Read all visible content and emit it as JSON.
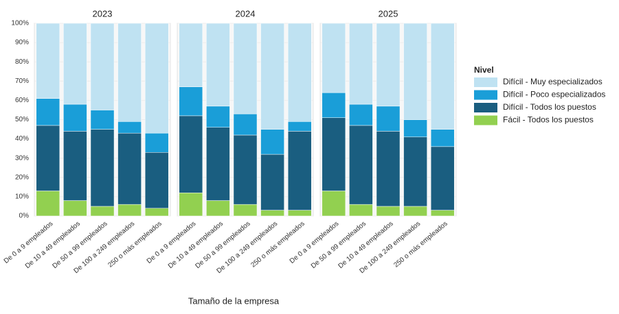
{
  "chart_data": {
    "type": "bar",
    "stacked": true,
    "xlabel": "Tamaño de la empresa",
    "legend_title": "Nivel",
    "ylim": [
      0,
      100
    ],
    "yticks": [
      {
        "value": 0,
        "label": "0%"
      },
      {
        "value": 10,
        "label": "10%"
      },
      {
        "value": 20,
        "label": "20%"
      },
      {
        "value": 30,
        "label": "30%"
      },
      {
        "value": 40,
        "label": "40%"
      },
      {
        "value": 50,
        "label": "50%"
      },
      {
        "value": 60,
        "label": "60%"
      },
      {
        "value": 70,
        "label": "70%"
      },
      {
        "value": 80,
        "label": "80%"
      },
      {
        "value": 90,
        "label": "90%"
      },
      {
        "value": 100,
        "label": "100%"
      }
    ],
    "panels": [
      {
        "title": "2023",
        "categories": [
          "De 0 a 9 empleados",
          "De 10 a 49 empleados",
          "De 50 a 99 empleados",
          "De 100 a 249 empleados",
          "250 o más empleados"
        ]
      },
      {
        "title": "2024",
        "categories": [
          "De 0 a 9 empleados",
          "De 10 a 49 empleados",
          "De 50 a 99 empleados",
          "De 100 a 249 empleados",
          "250 o más empleados"
        ]
      },
      {
        "title": "2025",
        "categories": [
          "De 0 a 9 empleados",
          "De 50 a 99 empleados",
          "De 10 a 49 empleados",
          "De 100 a 249 empleados",
          "250 o más empleados"
        ]
      }
    ],
    "series": [
      {
        "name": "Fácil - Todos los puestos",
        "color": "#92d050",
        "values": [
          [
            13,
            8,
            5,
            6,
            4
          ],
          [
            12,
            8,
            6,
            3,
            3
          ],
          [
            13,
            6,
            5,
            5,
            3
          ]
        ]
      },
      {
        "name": "Difícil - Todos los puestos",
        "color": "#1a5e80",
        "values": [
          [
            34,
            36,
            40,
            37,
            29
          ],
          [
            40,
            38,
            36,
            29,
            41
          ],
          [
            38,
            41,
            39,
            36,
            33
          ]
        ]
      },
      {
        "name": "Difícil - Poco especializados",
        "color": "#1a9ed8",
        "values": [
          [
            14,
            14,
            10,
            6,
            10
          ],
          [
            15,
            11,
            11,
            13,
            5
          ],
          [
            13,
            11,
            13,
            9,
            9
          ]
        ]
      },
      {
        "name": "Difícil - Muy especializados",
        "color": "#bfe2f2",
        "values": [
          [
            39,
            42,
            45,
            51,
            57
          ],
          [
            33,
            43,
            47,
            55,
            51
          ],
          [
            36,
            42,
            43,
            50,
            55
          ]
        ]
      }
    ]
  }
}
